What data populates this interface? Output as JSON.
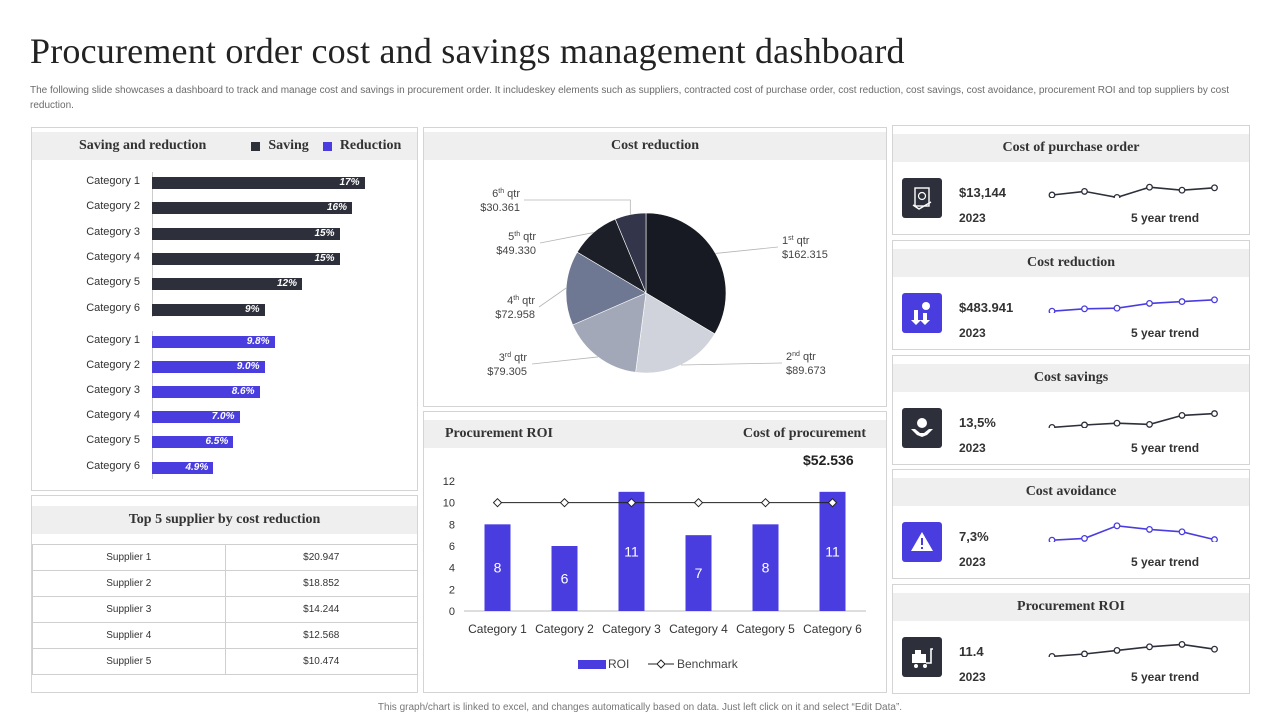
{
  "page": {
    "title": "Procurement order cost and savings management dashboard",
    "subtitle": "The following slide showcases a dashboard to track and manage cost and savings in procurement order. It includeskey elements such as suppliers, contracted cost of purchase order, cost reduction, cost savings, cost avoidance, procurement ROI and top suppliers by cost reduction.",
    "footer": "This graph/chart is linked to excel, and changes automatically based on data. Just left click on it and select “Edit Data”."
  },
  "colors": {
    "saving": "#2d2f3a",
    "reduction": "#4a3de0",
    "header_bg": "#efefef",
    "dark_icon": "#2d2f3a"
  },
  "saving_reduction": {
    "title": "Saving and reduction",
    "legend_saving": "Saving",
    "legend_reduction": "Reduction",
    "saving_rows": [
      {
        "category": "Category 1",
        "value": 17,
        "label": "17%"
      },
      {
        "category": "Category 2",
        "value": 16,
        "label": "16%"
      },
      {
        "category": "Category 3",
        "value": 15,
        "label": "15%"
      },
      {
        "category": "Category 4",
        "value": 15,
        "label": "15%"
      },
      {
        "category": "Category 5",
        "value": 12,
        "label": "12%"
      },
      {
        "category": "Category 6",
        "value": 9,
        "label": "9%"
      }
    ],
    "reduction_rows": [
      {
        "category": "Category 1",
        "value": 9.8,
        "label": "9.8%"
      },
      {
        "category": "Category 2",
        "value": 9.0,
        "label": "9.0%"
      },
      {
        "category": "Category 3",
        "value": 8.6,
        "label": "8.6%"
      },
      {
        "category": "Category 4",
        "value": 7.0,
        "label": "7.0%"
      },
      {
        "category": "Category 5",
        "value": 6.5,
        "label": "6.5%"
      },
      {
        "category": "Category 6",
        "value": 4.9,
        "label": "4.9%"
      }
    ]
  },
  "top_suppliers": {
    "title": "Top 5 supplier by cost reduction",
    "rows": [
      {
        "supplier": "Supplier 1",
        "value": "$20.947"
      },
      {
        "supplier": "Supplier 2",
        "value": "$18.852"
      },
      {
        "supplier": "Supplier 3",
        "value": "$14.244"
      },
      {
        "supplier": "Supplier 4",
        "value": "$12.568"
      },
      {
        "supplier": "Supplier 5",
        "value": "$10.474"
      }
    ]
  },
  "cost_reduction_pie": {
    "title": "Cost reduction",
    "slices": [
      {
        "label": "1st qtr",
        "sup": "st",
        "base": "1",
        "value_text": "$162.315",
        "value": 162.315,
        "color": "#171a22"
      },
      {
        "label": "2nd qtr",
        "sup": "nd",
        "base": "2",
        "value_text": "$89.673",
        "value": 89.673,
        "color": "#d0d3db"
      },
      {
        "label": "3rd qtr",
        "sup": "rd",
        "base": "3",
        "value_text": "$79.305",
        "value": 79.305,
        "color": "#a2a8b8"
      },
      {
        "label": "4th qtr",
        "sup": "th",
        "base": "4",
        "value_text": "$72.958",
        "value": 72.958,
        "color": "#6f7892"
      },
      {
        "label": "5th qtr",
        "sup": "th",
        "base": "5",
        "value_text": "$49.330",
        "value": 49.33,
        "color": "#1c1f28"
      },
      {
        "label": "6th qtr",
        "sup": "th",
        "base": "6",
        "value_text": "$30.361",
        "value": 30.361,
        "color": "#33364a"
      }
    ]
  },
  "procurement_roi": {
    "title": "Procurement ROI",
    "right_title": "Cost of procurement",
    "cost_value": "$52.536",
    "legend_roi": "ROI",
    "legend_benchmark": "Benchmark"
  },
  "chart_data": {
    "type": "bar",
    "title": "Procurement ROI",
    "categories": [
      "Category 1",
      "Category 2",
      "Category 3",
      "Category 4",
      "Category 5",
      "Category 6"
    ],
    "series": [
      {
        "name": "ROI",
        "values": [
          8,
          6,
          11,
          7,
          8,
          11
        ]
      },
      {
        "name": "Benchmark",
        "type": "line",
        "values": [
          10,
          10,
          10,
          10,
          10,
          10
        ]
      }
    ],
    "ylim": [
      0,
      12
    ],
    "yticks": [
      0,
      2,
      4,
      6,
      8,
      10,
      12
    ]
  },
  "kpis": [
    {
      "title": "Cost of purchase order",
      "value": "$13,144",
      "year": "2023",
      "trend_label": "5 year trend",
      "icon": "purchase-order-icon",
      "icon_bg": "#2d2f3a",
      "spark_color": "#2d2f3a",
      "spark": [
        3.0,
        3.6,
        2.6,
        4.3,
        3.8,
        4.2
      ]
    },
    {
      "title": "Cost reduction",
      "value": "$483.941",
      "year": "2023",
      "trend_label": "5 year trend",
      "icon": "cost-reduction-icon",
      "icon_bg": "#4a3de0",
      "spark_color": "#4a3de0",
      "spark": [
        2.8,
        3.2,
        3.3,
        4.1,
        4.4,
        4.7
      ]
    },
    {
      "title": "Cost savings",
      "value": "13,5%",
      "year": "2023",
      "trend_label": "5 year trend",
      "icon": "cost-savings-icon",
      "icon_bg": "#2d2f3a",
      "spark_color": "#2d2f3a",
      "spark": [
        2.6,
        3.0,
        3.3,
        3.1,
        4.6,
        4.9
      ]
    },
    {
      "title": "Cost avoidance",
      "value": "7,3%",
      "year": "2023",
      "trend_label": "5 year trend",
      "icon": "cost-avoidance-icon",
      "icon_bg": "#4a3de0",
      "spark_color": "#4a3de0",
      "spark": [
        2.8,
        3.1,
        5.2,
        4.6,
        4.2,
        2.9
      ]
    },
    {
      "title": "Procurement ROI",
      "value": "11.4",
      "year": "2023",
      "trend_label": "5 year trend",
      "icon": "procurement-roi-icon",
      "icon_bg": "#2d2f3a",
      "spark_color": "#2d2f3a",
      "spark": [
        2.6,
        3.0,
        3.6,
        4.2,
        4.6,
        3.8
      ]
    }
  ]
}
